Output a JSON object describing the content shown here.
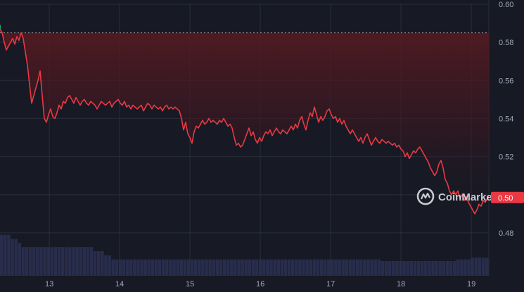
{
  "watermark": {
    "label": "CoinMarketCap"
  },
  "chart_data": {
    "type": "line",
    "title": "",
    "xlabel": "",
    "ylabel": "",
    "ylim": [
      0.46,
      0.6
    ],
    "y_ticks": [
      "0.60",
      "0.58",
      "0.56",
      "0.54",
      "0.52",
      "0.50",
      "0.48"
    ],
    "x_ticks": [
      {
        "label": "13",
        "x": 13
      },
      {
        "label": "14",
        "x": 14
      },
      {
        "label": "15",
        "x": 15
      },
      {
        "label": "16",
        "x": 16
      },
      {
        "label": "17",
        "x": 17
      },
      {
        "label": "18",
        "x": 18
      },
      {
        "label": "19",
        "x": 19
      }
    ],
    "xlim": [
      12.3,
      19.25
    ],
    "reference_price": 0.585,
    "current_price_label": "0.50",
    "grid": true,
    "colors": {
      "line_down": "#ea3943",
      "line_up": "#16c784",
      "background": "#171924",
      "volume": "#2b3154",
      "price_tag": "#ea3943"
    },
    "series": [
      {
        "values": [
          [
            12.3,
            0.587
          ],
          [
            12.33,
            0.585
          ],
          [
            12.36,
            0.58
          ],
          [
            12.39,
            0.576
          ],
          [
            12.42,
            0.578
          ],
          [
            12.45,
            0.58
          ],
          [
            12.48,
            0.582
          ],
          [
            12.51,
            0.579
          ],
          [
            12.54,
            0.583
          ],
          [
            12.57,
            0.581
          ],
          [
            12.6,
            0.585
          ],
          [
            12.63,
            0.582
          ],
          [
            12.66,
            0.575
          ],
          [
            12.69,
            0.568
          ],
          [
            12.72,
            0.558
          ],
          [
            12.75,
            0.548
          ],
          [
            12.78,
            0.552
          ],
          [
            12.81,
            0.556
          ],
          [
            12.84,
            0.56
          ],
          [
            12.87,
            0.565
          ],
          [
            12.9,
            0.552
          ],
          [
            12.93,
            0.54
          ],
          [
            12.96,
            0.538
          ],
          [
            12.99,
            0.542
          ],
          [
            13.02,
            0.545
          ],
          [
            13.05,
            0.541
          ],
          [
            13.08,
            0.54
          ],
          [
            13.11,
            0.543
          ],
          [
            13.14,
            0.547
          ],
          [
            13.17,
            0.545
          ],
          [
            13.2,
            0.549
          ],
          [
            13.23,
            0.548
          ],
          [
            13.26,
            0.551
          ],
          [
            13.29,
            0.552
          ],
          [
            13.32,
            0.55
          ],
          [
            13.35,
            0.548
          ],
          [
            13.38,
            0.551
          ],
          [
            13.41,
            0.549
          ],
          [
            13.44,
            0.547
          ],
          [
            13.47,
            0.549
          ],
          [
            13.5,
            0.55
          ],
          [
            13.53,
            0.548
          ],
          [
            13.56,
            0.547
          ],
          [
            13.59,
            0.549
          ],
          [
            13.62,
            0.548
          ],
          [
            13.65,
            0.547
          ],
          [
            13.68,
            0.545
          ],
          [
            13.71,
            0.547
          ],
          [
            13.74,
            0.549
          ],
          [
            13.77,
            0.548
          ],
          [
            13.8,
            0.547
          ],
          [
            13.83,
            0.548
          ],
          [
            13.86,
            0.549
          ],
          [
            13.89,
            0.546
          ],
          [
            13.92,
            0.548
          ],
          [
            13.95,
            0.549
          ],
          [
            13.98,
            0.55
          ],
          [
            14.01,
            0.548
          ],
          [
            14.04,
            0.547
          ],
          [
            14.07,
            0.549
          ],
          [
            14.1,
            0.546
          ],
          [
            14.13,
            0.547
          ],
          [
            14.16,
            0.545
          ],
          [
            14.19,
            0.547
          ],
          [
            14.22,
            0.546
          ],
          [
            14.25,
            0.545
          ],
          [
            14.28,
            0.546
          ],
          [
            14.31,
            0.547
          ],
          [
            14.34,
            0.544
          ],
          [
            14.37,
            0.546
          ],
          [
            14.4,
            0.548
          ],
          [
            14.43,
            0.547
          ],
          [
            14.46,
            0.545
          ],
          [
            14.49,
            0.547
          ],
          [
            14.52,
            0.546
          ],
          [
            14.55,
            0.545
          ],
          [
            14.58,
            0.546
          ],
          [
            14.61,
            0.544
          ],
          [
            14.64,
            0.546
          ],
          [
            14.67,
            0.547
          ],
          [
            14.7,
            0.545
          ],
          [
            14.73,
            0.546
          ],
          [
            14.76,
            0.545
          ],
          [
            14.79,
            0.546
          ],
          [
            14.82,
            0.545
          ],
          [
            14.85,
            0.544
          ],
          [
            14.88,
            0.54
          ],
          [
            14.91,
            0.534
          ],
          [
            14.94,
            0.538
          ],
          [
            14.97,
            0.532
          ],
          [
            15.0,
            0.53
          ],
          [
            15.03,
            0.527
          ],
          [
            15.06,
            0.533
          ],
          [
            15.09,
            0.536
          ],
          [
            15.12,
            0.535
          ],
          [
            15.15,
            0.537
          ],
          [
            15.18,
            0.539
          ],
          [
            15.21,
            0.537
          ],
          [
            15.24,
            0.538
          ],
          [
            15.27,
            0.54
          ],
          [
            15.3,
            0.538
          ],
          [
            15.33,
            0.539
          ],
          [
            15.36,
            0.538
          ],
          [
            15.39,
            0.537
          ],
          [
            15.42,
            0.539
          ],
          [
            15.45,
            0.538
          ],
          [
            15.48,
            0.54
          ],
          [
            15.51,
            0.538
          ],
          [
            15.54,
            0.536
          ],
          [
            15.57,
            0.537
          ],
          [
            15.6,
            0.535
          ],
          [
            15.63,
            0.53
          ],
          [
            15.66,
            0.526
          ],
          [
            15.69,
            0.527
          ],
          [
            15.72,
            0.525
          ],
          [
            15.75,
            0.526
          ],
          [
            15.78,
            0.529
          ],
          [
            15.81,
            0.532
          ],
          [
            15.84,
            0.535
          ],
          [
            15.87,
            0.531
          ],
          [
            15.9,
            0.533
          ],
          [
            15.93,
            0.529
          ],
          [
            15.96,
            0.527
          ],
          [
            15.99,
            0.53
          ],
          [
            16.02,
            0.528
          ],
          [
            16.05,
            0.531
          ],
          [
            16.08,
            0.533
          ],
          [
            16.11,
            0.532
          ],
          [
            16.14,
            0.534
          ],
          [
            16.17,
            0.531
          ],
          [
            16.2,
            0.533
          ],
          [
            16.23,
            0.535
          ],
          [
            16.26,
            0.533
          ],
          [
            16.29,
            0.532
          ],
          [
            16.32,
            0.534
          ],
          [
            16.35,
            0.533
          ],
          [
            16.38,
            0.532
          ],
          [
            16.41,
            0.534
          ],
          [
            16.44,
            0.536
          ],
          [
            16.47,
            0.534
          ],
          [
            16.5,
            0.537
          ],
          [
            16.53,
            0.535
          ],
          [
            16.56,
            0.539
          ],
          [
            16.59,
            0.541
          ],
          [
            16.62,
            0.537
          ],
          [
            16.65,
            0.534
          ],
          [
            16.68,
            0.539
          ],
          [
            16.71,
            0.543
          ],
          [
            16.74,
            0.541
          ],
          [
            16.77,
            0.546
          ],
          [
            16.8,
            0.542
          ],
          [
            16.83,
            0.538
          ],
          [
            16.86,
            0.541
          ],
          [
            16.89,
            0.539
          ],
          [
            16.92,
            0.541
          ],
          [
            16.95,
            0.544
          ],
          [
            16.98,
            0.545
          ],
          [
            17.01,
            0.542
          ],
          [
            17.04,
            0.54
          ],
          [
            17.07,
            0.541
          ],
          [
            17.1,
            0.538
          ],
          [
            17.13,
            0.54
          ],
          [
            17.16,
            0.537
          ],
          [
            17.19,
            0.539
          ],
          [
            17.22,
            0.536
          ],
          [
            17.25,
            0.534
          ],
          [
            17.28,
            0.532
          ],
          [
            17.31,
            0.534
          ],
          [
            17.34,
            0.532
          ],
          [
            17.37,
            0.53
          ],
          [
            17.4,
            0.528
          ],
          [
            17.43,
            0.53
          ],
          [
            17.46,
            0.527
          ],
          [
            17.49,
            0.53
          ],
          [
            17.52,
            0.532
          ],
          [
            17.55,
            0.529
          ],
          [
            17.58,
            0.526
          ],
          [
            17.61,
            0.528
          ],
          [
            17.64,
            0.53
          ],
          [
            17.67,
            0.528
          ],
          [
            17.7,
            0.527
          ],
          [
            17.73,
            0.529
          ],
          [
            17.76,
            0.528
          ],
          [
            17.79,
            0.527
          ],
          [
            17.82,
            0.528
          ],
          [
            17.85,
            0.527
          ],
          [
            17.88,
            0.526
          ],
          [
            17.91,
            0.527
          ],
          [
            17.94,
            0.525
          ],
          [
            17.97,
            0.526
          ],
          [
            18.0,
            0.524
          ],
          [
            18.03,
            0.523
          ],
          [
            18.06,
            0.52
          ],
          [
            18.09,
            0.522
          ],
          [
            18.12,
            0.519
          ],
          [
            18.15,
            0.521
          ],
          [
            18.18,
            0.523
          ],
          [
            18.21,
            0.522
          ],
          [
            18.24,
            0.524
          ],
          [
            18.27,
            0.525
          ],
          [
            18.3,
            0.523
          ],
          [
            18.33,
            0.521
          ],
          [
            18.36,
            0.519
          ],
          [
            18.39,
            0.517
          ],
          [
            18.42,
            0.514
          ],
          [
            18.45,
            0.512
          ],
          [
            18.48,
            0.51
          ],
          [
            18.51,
            0.512
          ],
          [
            18.54,
            0.516
          ],
          [
            18.57,
            0.518
          ],
          [
            18.6,
            0.514
          ],
          [
            18.63,
            0.508
          ],
          [
            18.66,
            0.506
          ],
          [
            18.69,
            0.502
          ],
          [
            18.72,
            0.5
          ],
          [
            18.75,
            0.502
          ],
          [
            18.78,
            0.5
          ],
          [
            18.81,
            0.502
          ],
          [
            18.84,
            0.498
          ],
          [
            18.87,
            0.5
          ],
          [
            18.9,
            0.497
          ],
          [
            18.93,
            0.499
          ],
          [
            18.96,
            0.496
          ],
          [
            18.99,
            0.494
          ],
          [
            19.02,
            0.492
          ],
          [
            19.05,
            0.49
          ],
          [
            19.08,
            0.492
          ],
          [
            19.11,
            0.495
          ],
          [
            19.14,
            0.494
          ],
          [
            19.17,
            0.497
          ],
          [
            19.2,
            0.496
          ],
          [
            19.23,
            0.498
          ],
          [
            19.25,
            0.499
          ]
        ]
      }
    ],
    "volume": [
      0.05,
      0.05,
      0.05,
      0.045,
      0.045,
      0.04,
      0.035,
      0.035,
      0.035,
      0.035,
      0.035,
      0.035,
      0.035,
      0.035,
      0.035,
      0.035,
      0.035,
      0.035,
      0.035,
      0.035,
      0.035,
      0.035,
      0.035,
      0.035,
      0.035,
      0.035,
      0.03,
      0.03,
      0.03,
      0.025,
      0.025,
      0.02,
      0.02,
      0.02,
      0.02,
      0.02,
      0.02,
      0.02,
      0.02,
      0.02,
      0.02,
      0.02,
      0.02,
      0.02,
      0.02,
      0.02,
      0.02,
      0.02,
      0.02,
      0.02,
      0.02,
      0.02,
      0.02,
      0.02,
      0.02,
      0.02,
      0.02,
      0.02,
      0.02,
      0.02,
      0.02,
      0.02,
      0.02,
      0.02,
      0.02,
      0.02,
      0.02,
      0.02,
      0.02,
      0.02,
      0.02,
      0.02,
      0.02,
      0.02,
      0.02,
      0.02,
      0.02,
      0.02,
      0.02,
      0.02,
      0.02,
      0.02,
      0.02,
      0.02,
      0.02,
      0.02,
      0.02,
      0.02,
      0.02,
      0.02,
      0.02,
      0.02,
      0.02,
      0.02,
      0.02,
      0.02,
      0.02,
      0.02,
      0.02,
      0.02,
      0.02,
      0.02,
      0.02,
      0.02,
      0.02,
      0.02,
      0.018,
      0.018,
      0.018,
      0.018,
      0.018,
      0.018,
      0.018,
      0.018,
      0.018,
      0.018,
      0.018,
      0.018,
      0.018,
      0.018,
      0.018,
      0.018,
      0.018,
      0.018,
      0.018,
      0.018,
      0.018,
      0.02,
      0.02,
      0.02,
      0.02,
      0.022,
      0.022,
      0.022,
      0.022,
      0.022
    ]
  }
}
